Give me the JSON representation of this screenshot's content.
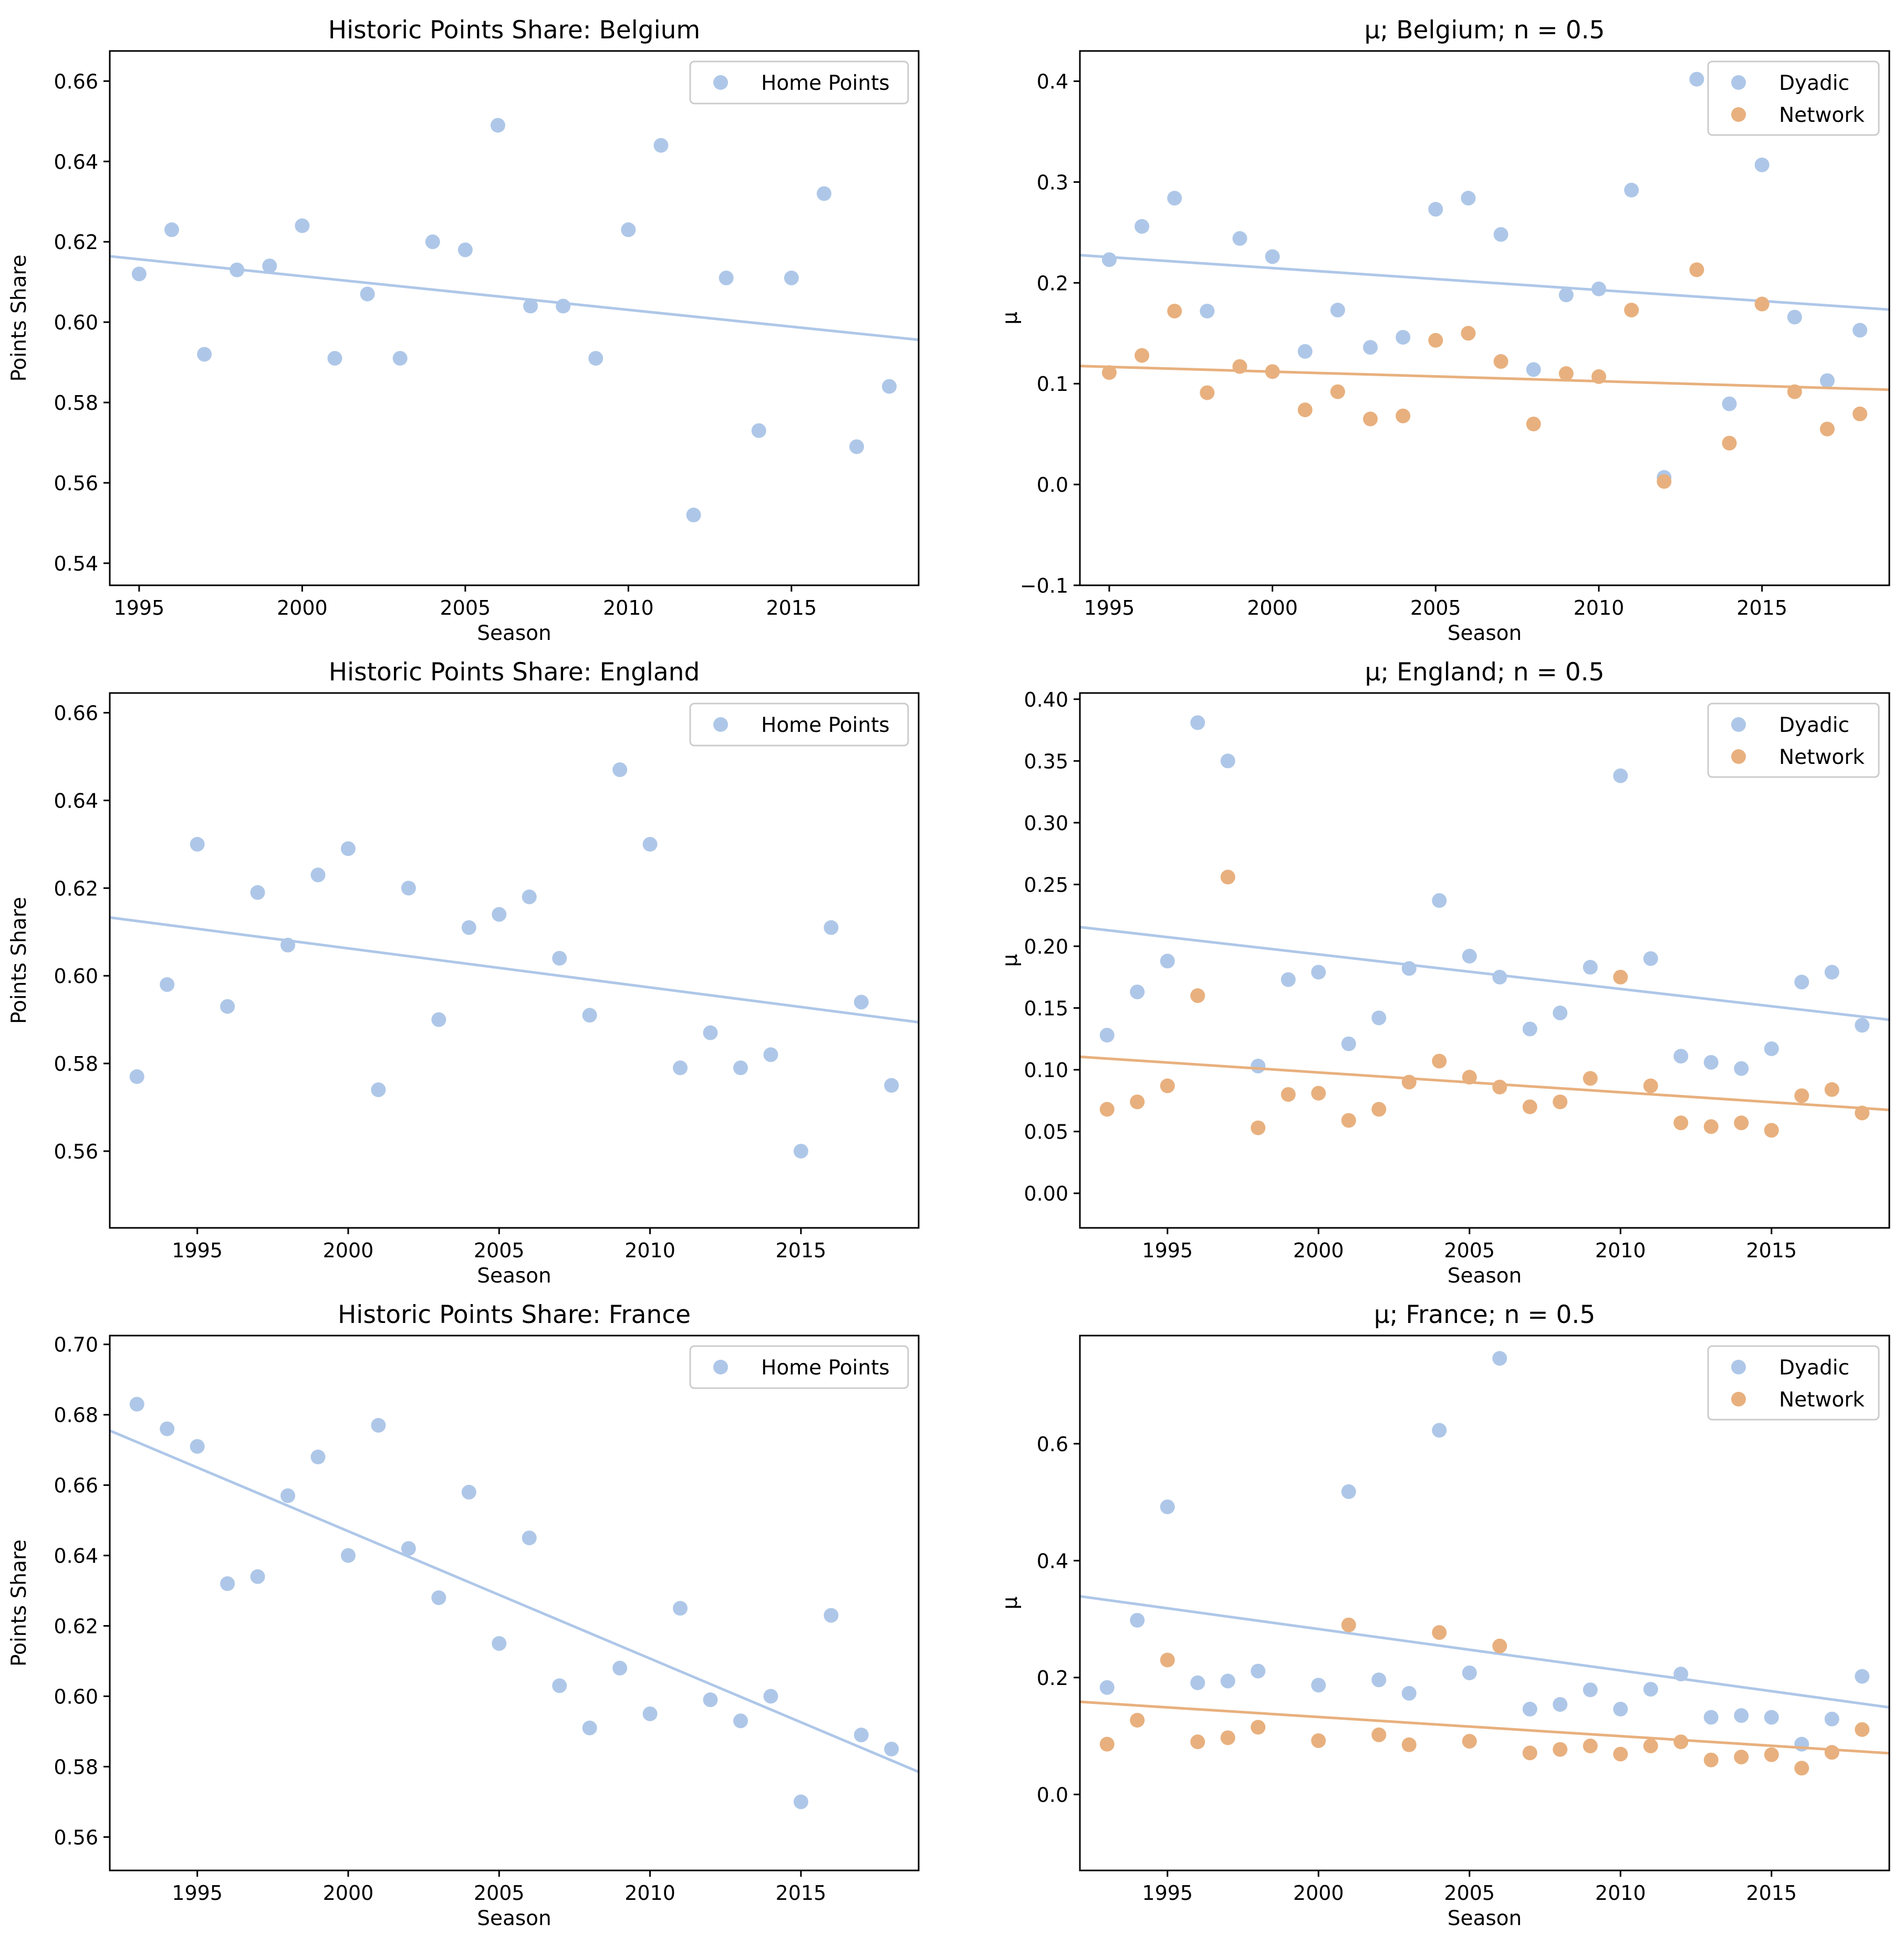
{
  "colors": {
    "dyadic": "#aec7e8",
    "network": "#e8b07e",
    "home": "#aec7e8"
  },
  "chart_data": [
    {
      "type": "scatter",
      "title": "Historic Points Share: Belgium",
      "xlabel": "Season",
      "ylabel": "Points Share",
      "xlim": [
        1994.1,
        2018.9
      ],
      "ylim": [
        0.5345,
        0.6675
      ],
      "xticks": [
        1995,
        2000,
        2005,
        2010,
        2015
      ],
      "yticks": [
        0.54,
        0.56,
        0.58,
        0.6,
        0.62,
        0.64,
        0.66
      ],
      "ytick_labels": [
        "0.54",
        "0.56",
        "0.58",
        "0.60",
        "0.62",
        "0.64",
        "0.66"
      ],
      "series": [
        {
          "name": "Home Points",
          "color_key": "home",
          "x": [
            1995,
            1996,
            1997,
            1998,
            1999,
            2000,
            2001,
            2002,
            2003,
            2004,
            2005,
            2006,
            2007,
            2008,
            2009,
            2010,
            2011,
            2012,
            2013,
            2014,
            2015,
            2016,
            2017,
            2018
          ],
          "y": [
            0.612,
            0.623,
            0.592,
            0.613,
            0.614,
            0.624,
            0.591,
            0.607,
            0.591,
            0.62,
            0.618,
            0.649,
            0.604,
            0.604,
            0.591,
            0.623,
            0.644,
            0.552,
            0.611,
            0.573,
            0.611,
            0.632,
            0.569,
            0.584
          ],
          "trend": [
            0.6164,
            0.5956
          ]
        }
      ]
    },
    {
      "type": "scatter",
      "title": "μ; Belgium; n = 0.5",
      "xlabel": "Season",
      "ylabel": "μ",
      "xlim": [
        1994.1,
        2018.9
      ],
      "ylim": [
        -0.1,
        0.43
      ],
      "xticks": [
        1995,
        2000,
        2005,
        2010,
        2015
      ],
      "yticks": [
        -0.1,
        0.0,
        0.1,
        0.2,
        0.3,
        0.4
      ],
      "ytick_labels": [
        "−0.1",
        "0.0",
        "0.1",
        "0.2",
        "0.3",
        "0.4"
      ],
      "series": [
        {
          "name": "Dyadic",
          "color_key": "dyadic",
          "x": [
            1995,
            1996,
            1997,
            1998,
            1999,
            2000,
            2001,
            2002,
            2003,
            2004,
            2005,
            2006,
            2007,
            2008,
            2009,
            2010,
            2011,
            2012,
            2013,
            2014,
            2015,
            2016,
            2017,
            2018
          ],
          "y": [
            0.223,
            0.256,
            0.284,
            0.172,
            0.244,
            0.226,
            0.132,
            0.173,
            0.136,
            0.146,
            0.273,
            0.284,
            0.248,
            0.114,
            0.188,
            0.194,
            0.292,
            0.007,
            0.402,
            0.08,
            0.317,
            0.166,
            0.103,
            0.153
          ],
          "trend": [
            0.2275,
            0.1735
          ]
        },
        {
          "name": "Network",
          "color_key": "network",
          "x": [
            1995,
            1996,
            1997,
            1998,
            1999,
            2000,
            2001,
            2002,
            2003,
            2004,
            2005,
            2006,
            2007,
            2008,
            2009,
            2010,
            2011,
            2012,
            2013,
            2014,
            2015,
            2016,
            2017,
            2018
          ],
          "y": [
            0.111,
            0.128,
            0.172,
            0.091,
            0.117,
            0.112,
            0.074,
            0.092,
            0.065,
            0.068,
            0.143,
            0.15,
            0.122,
            0.06,
            0.11,
            0.107,
            0.173,
            0.003,
            0.213,
            0.041,
            0.179,
            0.092,
            0.055,
            0.07
          ],
          "trend": [
            0.1175,
            0.094
          ]
        }
      ]
    },
    {
      "type": "scatter",
      "title": "Historic Points Share: England",
      "xlabel": "Season",
      "ylabel": "Points Share",
      "xlim": [
        1992.1,
        2018.9
      ],
      "ylim": [
        0.5425,
        0.6645
      ],
      "xticks": [
        1995,
        2000,
        2005,
        2010,
        2015
      ],
      "yticks": [
        0.56,
        0.58,
        0.6,
        0.62,
        0.64,
        0.66
      ],
      "ytick_labels": [
        "0.56",
        "0.58",
        "0.60",
        "0.62",
        "0.64",
        "0.66"
      ],
      "series": [
        {
          "name": "Home Points",
          "color_key": "home",
          "x": [
            1993,
            1994,
            1995,
            1996,
            1997,
            1998,
            1999,
            2000,
            2001,
            2002,
            2003,
            2004,
            2005,
            2006,
            2007,
            2008,
            2009,
            2010,
            2011,
            2012,
            2013,
            2014,
            2015,
            2016,
            2017,
            2018
          ],
          "y": [
            0.577,
            0.598,
            0.63,
            0.593,
            0.619,
            0.607,
            0.623,
            0.629,
            0.574,
            0.62,
            0.59,
            0.611,
            0.614,
            0.618,
            0.604,
            0.591,
            0.647,
            0.63,
            0.579,
            0.587,
            0.579,
            0.582,
            0.56,
            0.611,
            0.594,
            0.575
          ],
          "trend": [
            0.6133,
            0.5894
          ]
        }
      ]
    },
    {
      "type": "scatter",
      "title": "μ; England; n = 0.5",
      "xlabel": "Season",
      "ylabel": "μ",
      "xlim": [
        1992.1,
        2018.9
      ],
      "ylim": [
        -0.028,
        0.405
      ],
      "xticks": [
        1995,
        2000,
        2005,
        2010,
        2015
      ],
      "yticks": [
        0.0,
        0.05,
        0.1,
        0.15,
        0.2,
        0.25,
        0.3,
        0.35,
        0.4
      ],
      "ytick_labels": [
        "0.00",
        "0.05",
        "0.10",
        "0.15",
        "0.20",
        "0.25",
        "0.30",
        "0.35",
        "0.40"
      ],
      "series": [
        {
          "name": "Dyadic",
          "color_key": "dyadic",
          "x": [
            1993,
            1994,
            1995,
            1996,
            1997,
            1998,
            1999,
            2000,
            2001,
            2002,
            2003,
            2004,
            2005,
            2006,
            2007,
            2008,
            2009,
            2010,
            2011,
            2012,
            2013,
            2014,
            2015,
            2016,
            2017,
            2018
          ],
          "y": [
            0.128,
            0.163,
            0.188,
            0.381,
            0.35,
            0.103,
            0.173,
            0.179,
            0.121,
            0.142,
            0.182,
            0.237,
            0.192,
            0.175,
            0.133,
            0.146,
            0.183,
            0.338,
            0.19,
            0.111,
            0.106,
            0.101,
            0.117,
            0.171,
            0.179,
            0.136
          ],
          "trend": [
            0.2155,
            0.1405
          ]
        },
        {
          "name": "Network",
          "color_key": "network",
          "x": [
            1993,
            1994,
            1995,
            1996,
            1997,
            1998,
            1999,
            2000,
            2001,
            2002,
            2003,
            2004,
            2005,
            2006,
            2007,
            2008,
            2009,
            2010,
            2011,
            2012,
            2013,
            2014,
            2015,
            2016,
            2017,
            2018
          ],
          "y": [
            0.068,
            0.074,
            0.087,
            0.16,
            0.256,
            0.053,
            0.08,
            0.081,
            0.059,
            0.068,
            0.09,
            0.107,
            0.094,
            0.086,
            0.07,
            0.074,
            0.093,
            0.175,
            0.087,
            0.057,
            0.054,
            0.057,
            0.051,
            0.079,
            0.084,
            0.065
          ],
          "trend": [
            0.1105,
            0.0675
          ]
        }
      ]
    },
    {
      "type": "scatter",
      "title": "Historic Points Share: France",
      "xlabel": "Season",
      "ylabel": "Points Share",
      "xlim": [
        1992.1,
        2018.9
      ],
      "ylim": [
        0.5505,
        0.7025
      ],
      "xticks": [
        1995,
        2000,
        2005,
        2010,
        2015
      ],
      "yticks": [
        0.56,
        0.58,
        0.6,
        0.62,
        0.64,
        0.66,
        0.68,
        0.7
      ],
      "ytick_labels": [
        "0.56",
        "0.58",
        "0.60",
        "0.62",
        "0.64",
        "0.66",
        "0.68",
        "0.70"
      ],
      "series": [
        {
          "name": "Home Points",
          "color_key": "home",
          "x": [
            1993,
            1994,
            1995,
            1996,
            1997,
            1998,
            1999,
            2000,
            2001,
            2002,
            2003,
            2004,
            2005,
            2006,
            2007,
            2008,
            2009,
            2010,
            2011,
            2012,
            2013,
            2014,
            2015,
            2016,
            2017,
            2018
          ],
          "y": [
            0.683,
            0.676,
            0.671,
            0.632,
            0.634,
            0.657,
            0.668,
            0.64,
            0.677,
            0.642,
            0.628,
            0.658,
            0.615,
            0.645,
            0.603,
            0.591,
            0.608,
            0.595,
            0.625,
            0.599,
            0.593,
            0.6,
            0.57,
            0.623,
            0.589,
            0.585
          ],
          "trend": [
            0.6755,
            0.5785
          ]
        }
      ]
    },
    {
      "type": "scatter",
      "title": "μ; France; n = 0.5",
      "xlabel": "Season",
      "ylabel": "μ",
      "xlim": [
        1992.1,
        2018.9
      ],
      "ylim": [
        -0.13,
        0.785
      ],
      "xticks": [
        1995,
        2000,
        2005,
        2010,
        2015
      ],
      "yticks": [
        0.0,
        0.2,
        0.4,
        0.6
      ],
      "ytick_labels": [
        "0.0",
        "0.2",
        "0.4",
        "0.6"
      ],
      "series": [
        {
          "name": "Dyadic",
          "color_key": "dyadic",
          "x": [
            1993,
            1994,
            1995,
            1996,
            1997,
            1998,
            2000,
            2001,
            2002,
            2003,
            2004,
            2005,
            2006,
            2007,
            2008,
            2009,
            2010,
            2011,
            2012,
            2013,
            2014,
            2015,
            2016,
            2017,
            2018
          ],
          "y": [
            0.183,
            0.298,
            0.492,
            0.191,
            0.194,
            0.211,
            0.187,
            0.518,
            0.196,
            0.173,
            0.623,
            0.208,
            0.746,
            0.146,
            0.154,
            0.179,
            0.146,
            0.18,
            0.206,
            0.132,
            0.135,
            0.132,
            0.086,
            0.129,
            0.202
          ],
          "trend": [
            0.339,
            0.149
          ]
        },
        {
          "name": "Network",
          "color_key": "network",
          "x": [
            1993,
            1994,
            1995,
            1996,
            1997,
            1998,
            2000,
            2001,
            2002,
            2003,
            2004,
            2005,
            2006,
            2007,
            2008,
            2009,
            2010,
            2011,
            2012,
            2013,
            2014,
            2015,
            2016,
            2017,
            2018
          ],
          "y": [
            0.086,
            0.127,
            0.23,
            0.09,
            0.097,
            0.115,
            0.092,
            0.29,
            0.102,
            0.085,
            0.277,
            0.091,
            0.254,
            0.071,
            0.077,
            0.083,
            0.069,
            0.083,
            0.09,
            0.059,
            0.064,
            0.068,
            0.045,
            0.072,
            0.111
          ],
          "trend": [
            0.1585,
            0.0705
          ]
        }
      ]
    }
  ]
}
